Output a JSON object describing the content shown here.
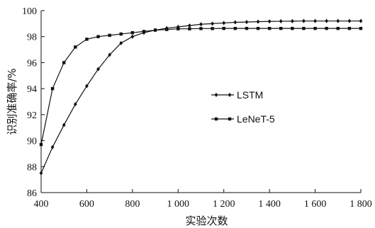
{
  "chart_data": {
    "type": "line",
    "title": "",
    "xlabel": "实验次数",
    "ylabel": "识别准确率/%",
    "xlim": [
      400,
      1800
    ],
    "ylim": [
      86,
      100
    ],
    "x_ticks": [
      400,
      600,
      800,
      1000,
      1200,
      1400,
      1600,
      1800
    ],
    "x_tick_labels": [
      "400",
      "600",
      "800",
      "1 000",
      "1 200",
      "1 400",
      "1 600",
      "1 800"
    ],
    "y_ticks": [
      86,
      88,
      90,
      92,
      94,
      96,
      98,
      100
    ],
    "y_tick_labels": [
      "86",
      "88",
      "90",
      "92",
      "94",
      "96",
      "98",
      "100"
    ],
    "grid": false,
    "legend_position": "center-right",
    "series": [
      {
        "name": "LSTM",
        "marker": "diamond",
        "x": [
          400,
          450,
          500,
          550,
          600,
          650,
          700,
          750,
          800,
          850,
          900,
          950,
          1000,
          1050,
          1100,
          1150,
          1200,
          1250,
          1300,
          1350,
          1400,
          1450,
          1500,
          1550,
          1600,
          1650,
          1700,
          1750,
          1800
        ],
        "values": [
          87.5,
          89.5,
          91.2,
          92.8,
          94.2,
          95.5,
          96.6,
          97.5,
          98.0,
          98.3,
          98.5,
          98.65,
          98.75,
          98.85,
          98.95,
          99.0,
          99.05,
          99.1,
          99.12,
          99.15,
          99.17,
          99.18,
          99.19,
          99.2,
          99.2,
          99.2,
          99.2,
          99.2,
          99.2
        ]
      },
      {
        "name": "LeNeT-5",
        "marker": "square",
        "x": [
          400,
          450,
          500,
          550,
          600,
          650,
          700,
          750,
          800,
          850,
          900,
          950,
          1000,
          1050,
          1100,
          1150,
          1200,
          1250,
          1300,
          1350,
          1400,
          1450,
          1500,
          1550,
          1600,
          1650,
          1700,
          1750,
          1800
        ],
        "values": [
          89.7,
          94.0,
          96.0,
          97.2,
          97.8,
          98.0,
          98.1,
          98.2,
          98.3,
          98.4,
          98.5,
          98.55,
          98.6,
          98.6,
          98.62,
          98.62,
          98.63,
          98.63,
          98.63,
          98.63,
          98.63,
          98.63,
          98.63,
          98.63,
          98.63,
          98.63,
          98.63,
          98.63,
          98.63
        ]
      }
    ]
  }
}
